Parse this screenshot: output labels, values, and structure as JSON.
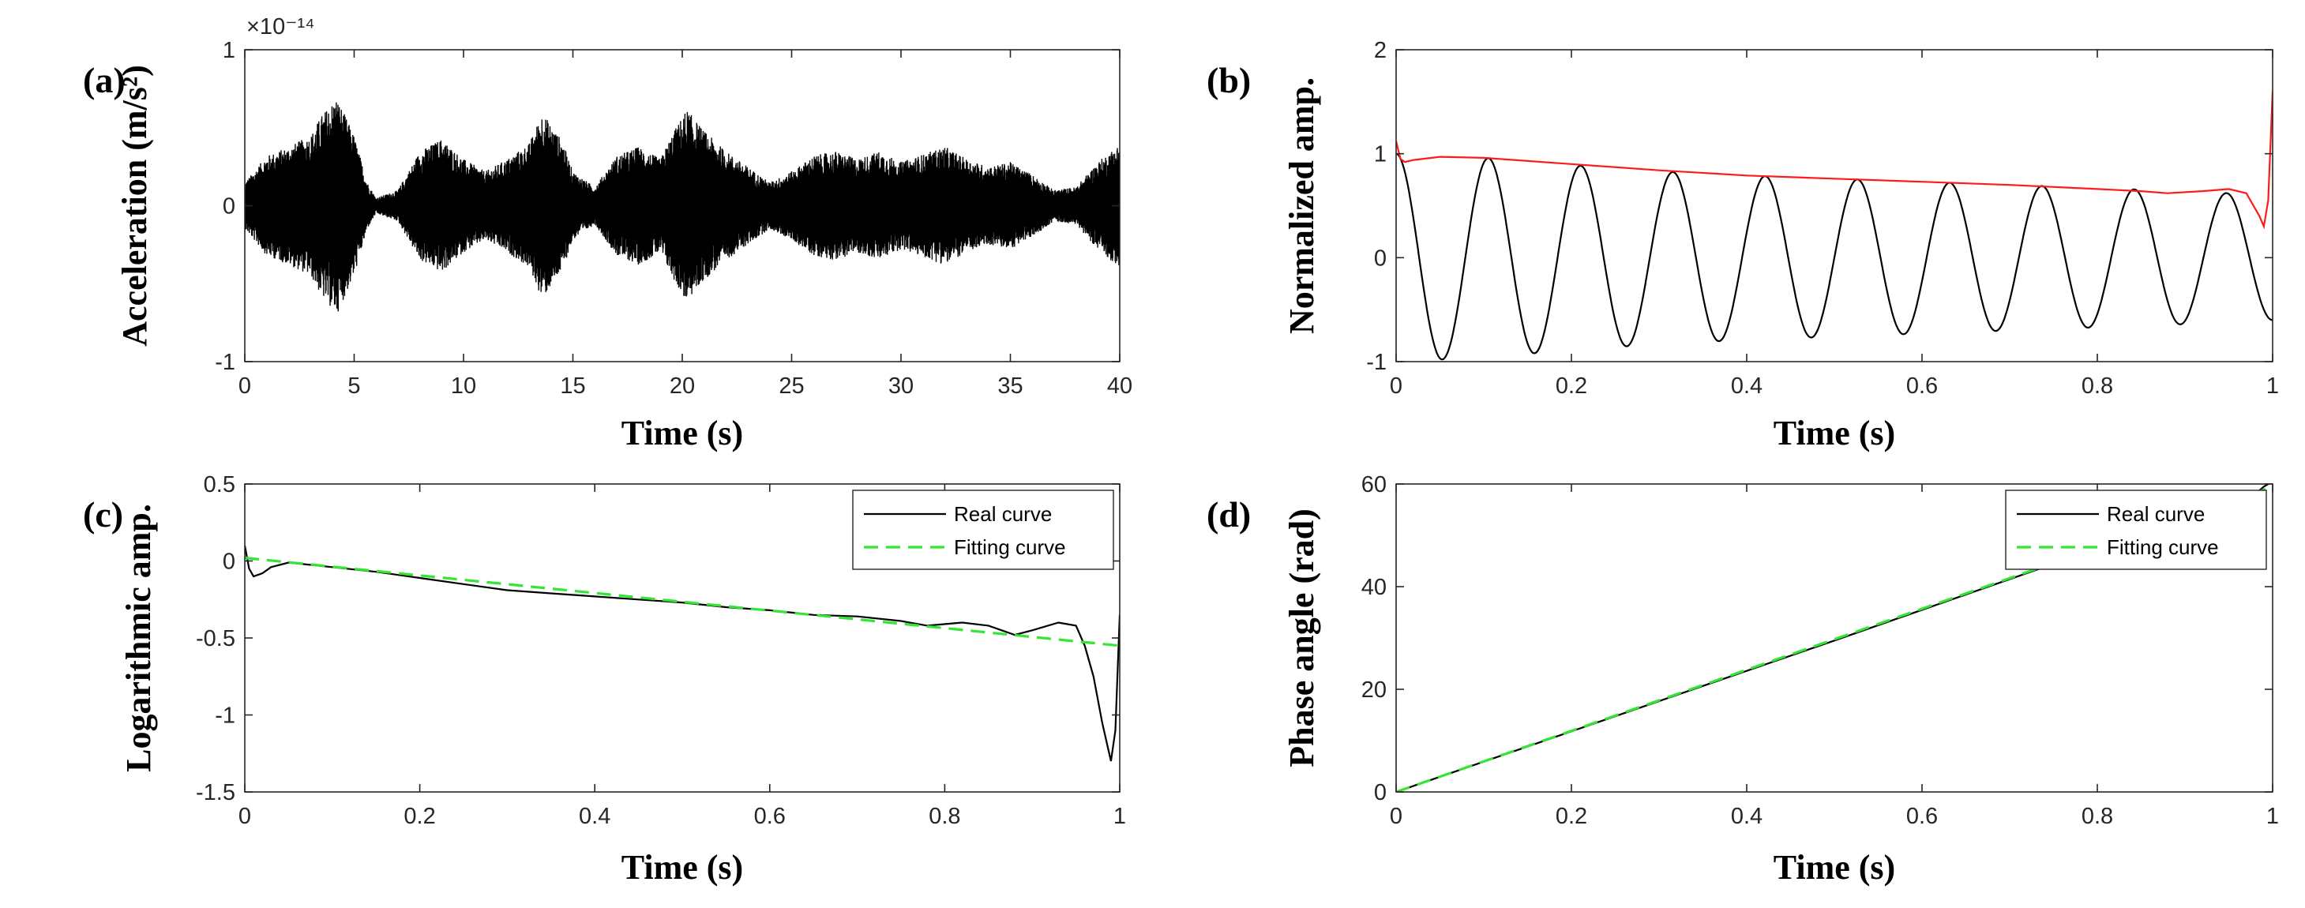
{
  "chart_data": [
    {
      "id": "a",
      "panel_label": "(a)",
      "type": "line",
      "xlabel": "Time (s)",
      "ylabel": "Acceleration (m/s²)",
      "y_exponent": "×10⁻¹⁴",
      "xlim": [
        0,
        40
      ],
      "ylim": [
        -1,
        1
      ],
      "xticks": [
        0,
        5,
        10,
        15,
        20,
        25,
        30,
        35,
        40
      ],
      "yticks": [
        -1,
        0,
        1
      ],
      "xtick_labels": [
        "0",
        "5",
        "10",
        "15",
        "20",
        "25",
        "30",
        "35",
        "40"
      ],
      "ytick_labels": [
        "-1",
        "0",
        "1"
      ],
      "series": [
        {
          "color": "#000000",
          "style": "dense oscillation (filled appearance)",
          "envelope": {
            "t": [
              0,
              1,
              2,
              3,
              3.5,
              4.2,
              5,
              5.6,
              6,
              7,
              8,
              9,
              10,
              11,
              12,
              13,
              13.6,
              14.5,
              15,
              16,
              17,
              18,
              19,
              19.5,
              20.2,
              21,
              22,
              23,
              24,
              25,
              26,
              27,
              28,
              29,
              30,
              31,
              32,
              33,
              34,
              35,
              36,
              37,
              38,
              39,
              40
            ],
            "amp": [
              0.15,
              0.32,
              0.38,
              0.45,
              0.58,
              0.7,
              0.45,
              0.15,
              0.05,
              0.1,
              0.35,
              0.43,
              0.3,
              0.22,
              0.3,
              0.4,
              0.6,
              0.42,
              0.22,
              0.12,
              0.32,
              0.38,
              0.3,
              0.45,
              0.62,
              0.48,
              0.35,
              0.25,
              0.15,
              0.22,
              0.32,
              0.35,
              0.3,
              0.35,
              0.28,
              0.33,
              0.38,
              0.3,
              0.25,
              0.28,
              0.2,
              0.1,
              0.12,
              0.28,
              0.4
            ]
          }
        }
      ]
    },
    {
      "id": "b",
      "panel_label": "(b)",
      "type": "line",
      "xlabel": "Time (s)",
      "ylabel": "Normalized amp.",
      "xlim": [
        0,
        1
      ],
      "ylim": [
        -1,
        2
      ],
      "xticks": [
        0,
        0.2,
        0.4,
        0.6,
        0.8,
        1
      ],
      "yticks": [
        -1,
        0,
        1,
        2
      ],
      "xtick_labels": [
        "0",
        "0.2",
        "0.4",
        "0.6",
        "0.8",
        "1"
      ],
      "ytick_labels": [
        "-1",
        "0",
        "1",
        "2"
      ],
      "series": [
        {
          "color": "#000000",
          "style": "damped cosine",
          "cycles": 9.5,
          "x": [
            0,
            0.05,
            0.1,
            0.2,
            0.3,
            0.4,
            0.5,
            0.6,
            0.7,
            0.8,
            0.9,
            1.0
          ],
          "envelope": [
            1.0,
            0.98,
            0.96,
            0.89,
            0.83,
            0.79,
            0.76,
            0.73,
            0.7,
            0.67,
            0.64,
            0.6
          ]
        },
        {
          "color": "#ff1a1a",
          "style": "envelope",
          "x": [
            0,
            0.005,
            0.01,
            0.02,
            0.05,
            0.1,
            0.2,
            0.3,
            0.4,
            0.5,
            0.6,
            0.7,
            0.8,
            0.85,
            0.88,
            0.92,
            0.95,
            0.97,
            0.985,
            0.99,
            0.995,
            1.0
          ],
          "y": [
            1.12,
            0.95,
            0.92,
            0.94,
            0.97,
            0.96,
            0.9,
            0.84,
            0.79,
            0.76,
            0.73,
            0.7,
            0.66,
            0.64,
            0.62,
            0.64,
            0.66,
            0.62,
            0.4,
            0.3,
            0.55,
            1.6
          ]
        }
      ]
    },
    {
      "id": "c",
      "panel_label": "(c)",
      "type": "line",
      "xlabel": "Time (s)",
      "ylabel": "Logarithmic amp.",
      "xlim": [
        0,
        1
      ],
      "ylim": [
        -1.5,
        0.5
      ],
      "xticks": [
        0,
        0.2,
        0.4,
        0.6,
        0.8,
        1
      ],
      "yticks": [
        -1.5,
        -1,
        -0.5,
        0,
        0.5
      ],
      "xtick_labels": [
        "0",
        "0.2",
        "0.4",
        "0.6",
        "0.8",
        "1"
      ],
      "ytick_labels": [
        "-1.5",
        "-1",
        "-0.5",
        "0",
        "0.5"
      ],
      "legend": {
        "position": "top-right",
        "entries": [
          "Real curve",
          "Fitting curve"
        ]
      },
      "series": [
        {
          "name": "Real curve",
          "color": "#000000",
          "dash": "solid",
          "x": [
            0,
            0.005,
            0.01,
            0.02,
            0.03,
            0.05,
            0.1,
            0.15,
            0.2,
            0.25,
            0.3,
            0.35,
            0.4,
            0.45,
            0.5,
            0.55,
            0.6,
            0.65,
            0.7,
            0.75,
            0.78,
            0.82,
            0.85,
            0.88,
            0.9,
            0.93,
            0.95,
            0.96,
            0.97,
            0.98,
            0.99,
            0.995,
            1.0
          ],
          "y": [
            0.1,
            -0.05,
            -0.1,
            -0.08,
            -0.04,
            -0.01,
            -0.04,
            -0.07,
            -0.11,
            -0.15,
            -0.19,
            -0.21,
            -0.23,
            -0.25,
            -0.27,
            -0.3,
            -0.32,
            -0.35,
            -0.36,
            -0.39,
            -0.42,
            -0.4,
            -0.42,
            -0.48,
            -0.45,
            -0.4,
            -0.42,
            -0.55,
            -0.75,
            -1.05,
            -1.3,
            -1.1,
            -0.35
          ]
        },
        {
          "name": "Fitting curve",
          "color": "#33e633",
          "dash": "dashed",
          "x": [
            0,
            1
          ],
          "y": [
            0.02,
            -0.55
          ]
        }
      ]
    },
    {
      "id": "d",
      "panel_label": "(d)",
      "type": "line",
      "xlabel": "Time (s)",
      "ylabel": "Phase angle (rad)",
      "xlim": [
        0,
        1
      ],
      "ylim": [
        0,
        60
      ],
      "xticks": [
        0,
        0.2,
        0.4,
        0.6,
        0.8,
        1
      ],
      "yticks": [
        0,
        20,
        40,
        60
      ],
      "xtick_labels": [
        "0",
        "0.2",
        "0.4",
        "0.6",
        "0.8",
        "1"
      ],
      "ytick_labels": [
        "0",
        "20",
        "40",
        "60"
      ],
      "legend": {
        "position": "top-right",
        "entries": [
          "Real curve",
          "Fitting curve"
        ]
      },
      "series": [
        {
          "name": "Real curve",
          "color": "#000000",
          "dash": "solid",
          "x": [
            0,
            0.5,
            0.96,
            0.98,
            0.99,
            1.0
          ],
          "y": [
            0,
            29.5,
            57,
            58,
            59.5,
            60.5
          ]
        },
        {
          "name": "Fitting curve",
          "color": "#33e633",
          "dash": "dashed",
          "x": [
            0,
            1
          ],
          "y": [
            0,
            59.5
          ]
        }
      ]
    }
  ]
}
